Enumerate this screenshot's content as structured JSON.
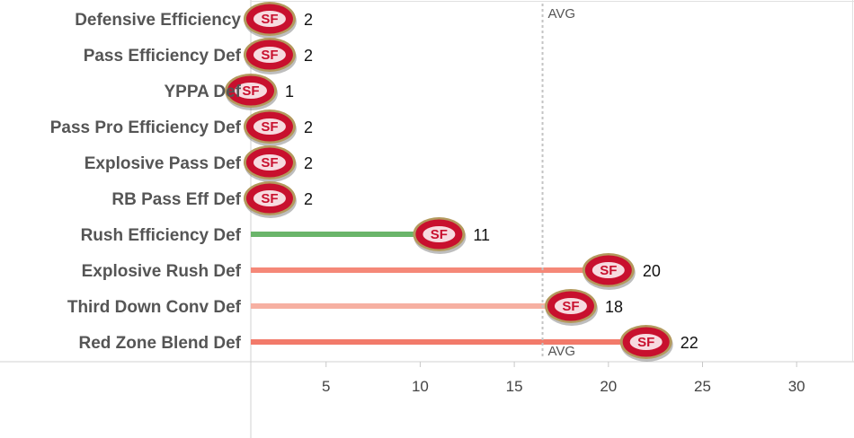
{
  "chart_data": {
    "type": "bar",
    "orientation": "horizontal",
    "categories": [
      "Defensive Efficiency",
      "Pass Efficiency Def",
      "YPPA Def",
      "Pass Pro Efficiency Def",
      "Explosive Pass Def",
      "RB Pass Eff Def",
      "Rush Efficiency Def",
      "Explosive Rush Def",
      "Third Down Conv Def",
      "Red Zone Blend Def"
    ],
    "values": [
      2,
      2,
      1,
      2,
      2,
      2,
      11,
      20,
      18,
      22
    ],
    "bar_colors": [
      "#f08a78",
      "#f08a78",
      "#f08a78",
      "#f08a78",
      "#f08a78",
      "#f08a78",
      "#6ab56a",
      "#f58878",
      "#f6b0a2",
      "#f27a6a"
    ],
    "x_ticks": [
      5,
      10,
      15,
      20,
      25,
      30
    ],
    "xlim": [
      1,
      33
    ],
    "reference_line": {
      "label": "AVG",
      "value": 16.5
    },
    "marker": {
      "icon": "49ers-logo-icon",
      "text": "SF",
      "color": "#c8102e",
      "gold": "#b3995d"
    },
    "grid": false,
    "legend": "none"
  }
}
